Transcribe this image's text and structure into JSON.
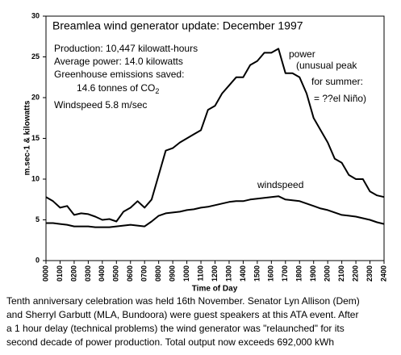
{
  "chart_data": {
    "type": "line",
    "title": "Breamlea wind generator update:   December 1997",
    "stats": [
      "Production: 10,447 kilowatt-hours",
      "Average power: 14.0 kilowatts",
      "Greenhouse emissions saved:"
    ],
    "co2_line": [
      "14.6 tonnes of CO",
      "2"
    ],
    "windspeed_note": "Windspeed 5.8 m/sec",
    "annotations": [
      "(unusual peak",
      "for summer:",
      "= ??el Niño)"
    ],
    "xlabel": "Time of Day",
    "ylabel": "m.sec-1 & kilowatts",
    "x": [
      0,
      0.5,
      1,
      1.5,
      2,
      2.5,
      3,
      3.5,
      4,
      4.5,
      5,
      5.5,
      6,
      6.5,
      7,
      7.5,
      8,
      8.5,
      9,
      9.5,
      10,
      10.5,
      11,
      11.5,
      12,
      12.5,
      13,
      13.5,
      14,
      14.5,
      15,
      15.5,
      16,
      16.5,
      17,
      17.5,
      18,
      18.5,
      19,
      19.5,
      20,
      20.5,
      21,
      21.5,
      22,
      22.5,
      23,
      23.5,
      24
    ],
    "series": [
      {
        "name": "power",
        "color": "#000000",
        "values": [
          7.8,
          7.3,
          6.5,
          6.7,
          5.6,
          5.8,
          5.7,
          5.4,
          5.0,
          5.1,
          4.8,
          6.0,
          6.5,
          7.3,
          6.5,
          7.5,
          10.5,
          13.5,
          13.8,
          14.5,
          15,
          15.5,
          16,
          18.5,
          19,
          20.5,
          21.5,
          22.5,
          22.5,
          24,
          24.5,
          25.5,
          25.5,
          26,
          23,
          23,
          22.5,
          20.5,
          17.5,
          16,
          14.5,
          12.5,
          12,
          10.5,
          10,
          10,
          8.5,
          8,
          7.8
        ]
      },
      {
        "name": "windspeed",
        "color": "#000000",
        "values": [
          4.6,
          4.6,
          4.5,
          4.4,
          4.2,
          4.2,
          4.2,
          4.1,
          4.1,
          4.1,
          4.2,
          4.3,
          4.4,
          4.3,
          4.2,
          4.8,
          5.5,
          5.8,
          5.9,
          6.0,
          6.2,
          6.3,
          6.5,
          6.6,
          6.8,
          7.0,
          7.2,
          7.3,
          7.3,
          7.5,
          7.6,
          7.7,
          7.8,
          7.9,
          7.5,
          7.4,
          7.3,
          7.0,
          6.7,
          6.4,
          6.2,
          5.9,
          5.6,
          5.5,
          5.4,
          5.2,
          5.0,
          4.7,
          4.5
        ]
      }
    ],
    "xlim": [
      0,
      24
    ],
    "xticks": [
      {
        "value": 0,
        "label": "0000"
      },
      {
        "value": 1,
        "label": "0100"
      },
      {
        "value": 2,
        "label": "0200"
      },
      {
        "value": 3,
        "label": "0300"
      },
      {
        "value": 4,
        "label": "0400"
      },
      {
        "value": 5,
        "label": "0500"
      },
      {
        "value": 6,
        "label": "0600"
      },
      {
        "value": 7,
        "label": "0700"
      },
      {
        "value": 8,
        "label": "0800"
      },
      {
        "value": 9,
        "label": "0900"
      },
      {
        "value": 10,
        "label": "1000"
      },
      {
        "value": 11,
        "label": "1100"
      },
      {
        "value": 12,
        "label": "1200"
      },
      {
        "value": 13,
        "label": "1300"
      },
      {
        "value": 14,
        "label": "1400"
      },
      {
        "value": 15,
        "label": "1500"
      },
      {
        "value": 16,
        "label": "1600"
      },
      {
        "value": 17,
        "label": "1700"
      },
      {
        "value": 18,
        "label": "1800"
      },
      {
        "value": 19,
        "label": "1900"
      },
      {
        "value": 20,
        "label": "2000"
      },
      {
        "value": 21,
        "label": "2100"
      },
      {
        "value": 22,
        "label": "2200"
      },
      {
        "value": 23,
        "label": "2300"
      },
      {
        "value": 24,
        "label": "2400"
      }
    ],
    "ylim": [
      0,
      30
    ],
    "yticks": [
      0,
      5,
      10,
      15,
      20,
      25,
      30
    ],
    "caption": [
      "Tenth anniversary celebration was held 16th November. Senator Lyn Allison (Dem)",
      "and Sherryl Garbutt (MLA, Bundoora) were guest speakers at this ATA event. After",
      "a 1 hour delay (technical problems) the wind generator     was \"relaunched\" for its",
      "second decade of power production. Total output now exceeds 692,000 kWh"
    ]
  }
}
